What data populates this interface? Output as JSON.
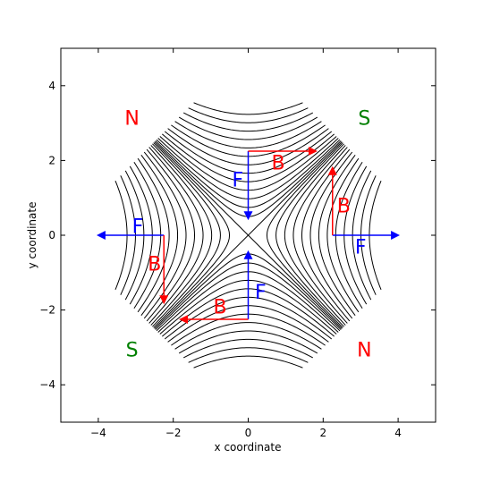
{
  "figure": {
    "xlabel": "x coordinate",
    "ylabel": "y coordinate",
    "xlim": [
      -5,
      5
    ],
    "ylim": [
      -5,
      5
    ],
    "xticks": [
      -4,
      -2,
      0,
      2,
      4
    ],
    "yticks": [
      -4,
      -2,
      0,
      2,
      4
    ],
    "tick_labels_x": [
      "−4",
      "−2",
      "0",
      "2",
      "4"
    ],
    "tick_labels_y": [
      "−4",
      "−2",
      "0",
      "2",
      "4"
    ]
  },
  "colors": {
    "field_lines": "#000000",
    "force_arrows": "#0000ff",
    "b_arrows": "#ff0000",
    "north": "#ff0000",
    "south": "#008000"
  },
  "poles": [
    {
      "label": "N",
      "x": -3.1,
      "y": 3.1,
      "color": "north"
    },
    {
      "label": "S",
      "x": 3.1,
      "y": 3.1,
      "color": "south"
    },
    {
      "label": "S",
      "x": -3.1,
      "y": -3.1,
      "color": "south"
    },
    {
      "label": "N",
      "x": 3.1,
      "y": -3.1,
      "color": "north"
    }
  ],
  "force_arrows": [
    {
      "label": "F",
      "x1": 0,
      "y1": 2.25,
      "x2": 0,
      "y2": 0.45,
      "lx": -0.28,
      "ly": 1.45
    },
    {
      "label": "F",
      "x1": 0,
      "y1": -2.25,
      "x2": 0,
      "y2": -0.45,
      "lx": 0.33,
      "ly": -1.55
    },
    {
      "label": "F",
      "x1": -2.25,
      "y1": 0,
      "x2": -4.0,
      "y2": 0,
      "lx": -2.95,
      "ly": 0.2
    },
    {
      "label": "F",
      "x1": 2.25,
      "y1": 0,
      "x2": 4.0,
      "y2": 0,
      "lx": 3.0,
      "ly": -0.35
    }
  ],
  "b_arrows": [
    {
      "label": "B",
      "x1": 0,
      "y1": 2.25,
      "x2": 1.8,
      "y2": 2.25,
      "lx": 0.8,
      "ly": 1.9
    },
    {
      "label": "B",
      "x1": 0,
      "y1": -2.25,
      "x2": -1.8,
      "y2": -2.25,
      "lx": -0.75,
      "ly": -1.95
    },
    {
      "label": "B",
      "x1": -2.25,
      "y1": 0,
      "x2": -2.25,
      "y2": -1.8,
      "lx": -2.5,
      "ly": -0.8
    },
    {
      "label": "B",
      "x1": 2.25,
      "y1": 0,
      "x2": 2.25,
      "y2": 1.8,
      "lx": 2.55,
      "ly": 0.75
    }
  ],
  "field_line_levels": [
    0,
    0.25,
    0.55,
    0.95,
    1.45,
    2.05,
    2.75,
    3.55,
    4.45,
    5.45,
    6.55,
    7.75,
    9.05,
    10.45
  ]
}
